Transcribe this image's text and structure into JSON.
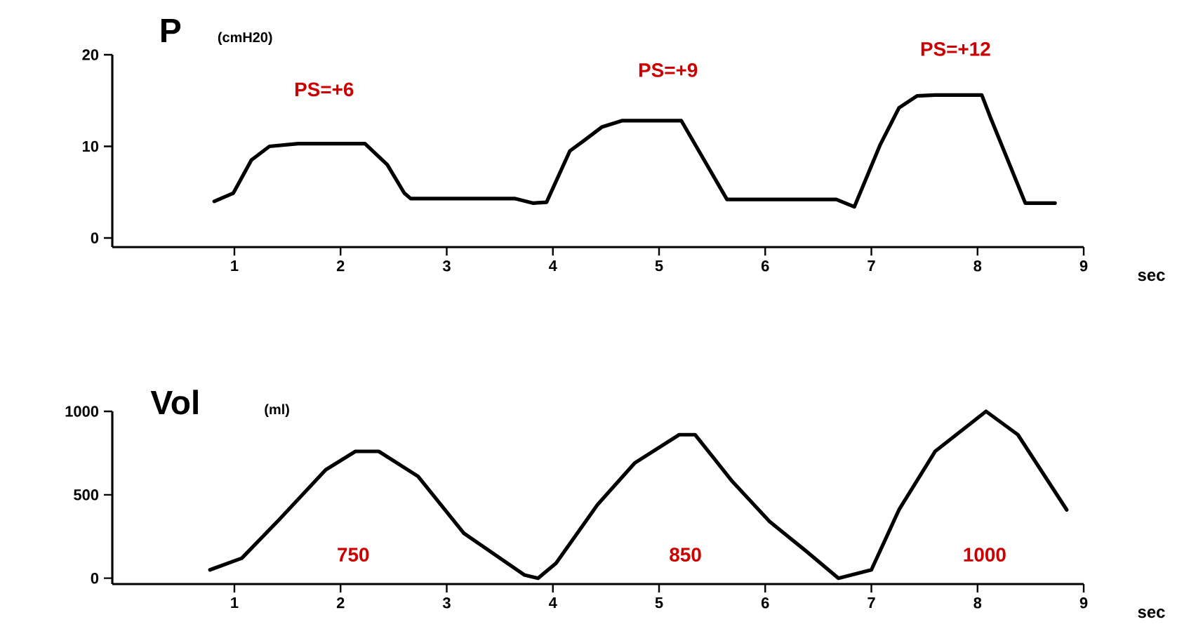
{
  "chart_data": [
    {
      "type": "line",
      "title": "P",
      "ylabel": "(cmH20)",
      "xlabel": "sec",
      "xlim": [
        -0.15,
        9
      ],
      "ylim": [
        -1,
        20
      ],
      "xticks": [
        1,
        2,
        3,
        4,
        5,
        6,
        7,
        8,
        9
      ],
      "yticks": [
        0,
        10,
        20
      ],
      "series": [
        {
          "color": "#000000",
          "x": [
            0.81,
            0.99,
            1.16,
            1.33,
            1.6,
            2.23,
            2.44,
            2.6,
            2.66,
            3.64,
            3.81,
            3.94,
            4.16,
            4.29,
            4.46,
            4.65,
            5.21,
            5.64,
            6.67,
            6.84,
            7.08,
            7.26,
            7.43,
            7.6,
            8.04,
            8.12,
            8.45,
            8.73
          ],
          "values": [
            4,
            4.9,
            8.5,
            10,
            10.3,
            10.3,
            8,
            4.9,
            4.3,
            4.3,
            3.8,
            3.9,
            9.5,
            10.6,
            12.1,
            12.8,
            12.8,
            4.2,
            4.2,
            3.4,
            10.1,
            14.2,
            15.5,
            15.6,
            15.6,
            13.2,
            3.8,
            3.8
          ]
        }
      ],
      "annotations": [
        "PS=+6",
        "PS=+9",
        "PS=+12"
      ]
    },
    {
      "type": "line",
      "title": "Vol",
      "ylabel": "(ml)",
      "xlabel": "sec",
      "xlim": [
        -0.15,
        9
      ],
      "ylim": [
        -35,
        1000
      ],
      "xticks": [
        1,
        2,
        3,
        4,
        5,
        6,
        7,
        8,
        9
      ],
      "yticks": [
        0,
        500,
        1000
      ],
      "series": [
        {
          "color": "#000000",
          "x": [
            0.77,
            1.07,
            1.42,
            1.86,
            2.14,
            2.36,
            2.73,
            3.16,
            3.73,
            3.86,
            4.03,
            4.42,
            4.77,
            5.19,
            5.34,
            5.69,
            6.04,
            6.39,
            6.69,
            7.0,
            7.26,
            7.6,
            8.08,
            8.38,
            8.84
          ],
          "values": [
            50,
            120,
            350,
            650,
            760,
            760,
            610,
            270,
            20,
            0,
            90,
            440,
            690,
            860,
            860,
            580,
            340,
            160,
            0,
            50,
            410,
            760,
            1000,
            860,
            410
          ]
        }
      ],
      "annotations": [
        "750",
        "850",
        "1000"
      ]
    }
  ]
}
